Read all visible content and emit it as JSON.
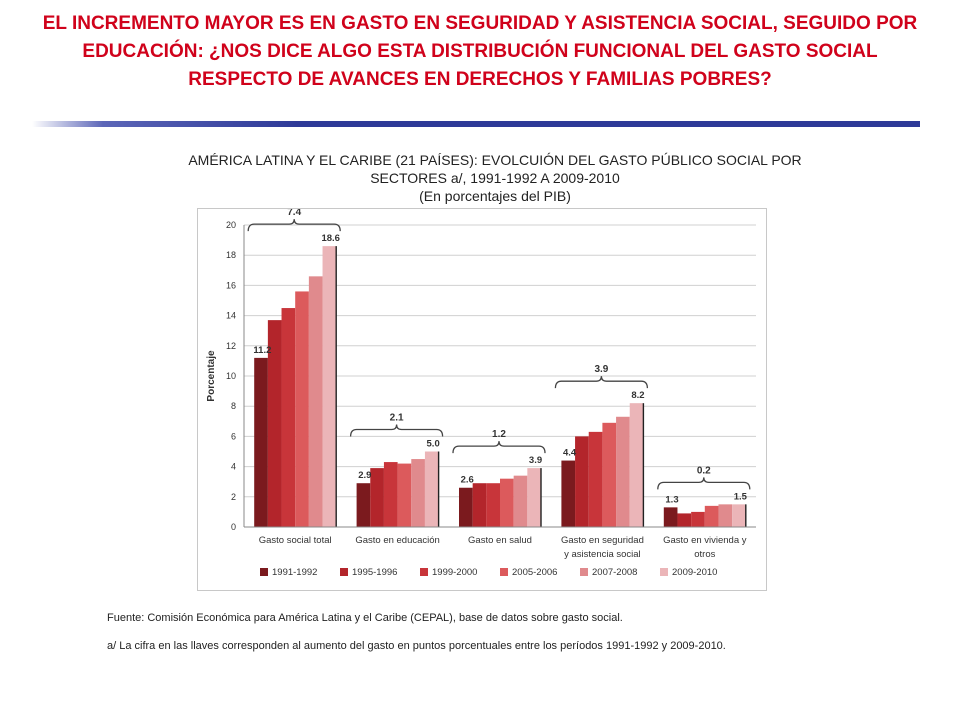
{
  "slide": {
    "title": "EL INCREMENTO MAYOR ES EN GASTO EN SEGURIDAD Y ASISTENCIA SOCIAL, SEGUIDO POR EDUCACIÓN: ¿NOS DICE ALGO ESTA DISTRIBUCIÓN FUNCIONAL DEL GASTO SOCIAL RESPECTO DE AVANCES EN DERECHOS Y FAMILIAS POBRES?"
  },
  "chart_heading": {
    "line1": "AMÉRICA LATINA Y EL CARIBE (21 PAÍSES): EVOLCUIÓN DEL GASTO PÚBLICO SOCIAL POR",
    "line2": "SECTORES a/, 1991-1992 A 2009-2010",
    "line3": "(En porcentajes del PIB)"
  },
  "chart_data": {
    "type": "bar",
    "ylabel": "Porcentaje",
    "xlabel": "",
    "ylim": [
      0,
      20
    ],
    "yticks": [
      0,
      2,
      4,
      6,
      8,
      10,
      12,
      14,
      16,
      18,
      20
    ],
    "grid": true,
    "legend_position": "bottom",
    "categories": [
      [
        "Gasto social total"
      ],
      [
        "Gasto en educación"
      ],
      [
        "Gasto en salud"
      ],
      [
        "Gasto en seguridad",
        "y asistencia social"
      ],
      [
        "Gasto en vivienda y",
        "otros"
      ]
    ],
    "series": [
      {
        "name": "1991-1992",
        "color": "#7b1a1e",
        "values": [
          11.2,
          2.9,
          2.6,
          4.4,
          1.3
        ]
      },
      {
        "name": "1995-1996",
        "color": "#b3252b",
        "values": [
          13.7,
          3.9,
          2.9,
          6.0,
          0.9
        ]
      },
      {
        "name": "1999-2000",
        "color": "#c8353a",
        "values": [
          14.5,
          4.3,
          2.9,
          6.3,
          1.0
        ]
      },
      {
        "name": "2005-2006",
        "color": "#dc5a5c",
        "values": [
          15.6,
          4.2,
          3.2,
          6.9,
          1.4
        ]
      },
      {
        "name": "2007-2008",
        "color": "#e08a8d",
        "values": [
          16.6,
          4.5,
          3.4,
          7.3,
          1.5
        ]
      },
      {
        "name": "2009-2010",
        "color": "#ebb5b8",
        "values": [
          18.6,
          5.0,
          3.9,
          8.2,
          1.5
        ]
      }
    ],
    "start_labels": [
      "11.2",
      "2.9",
      "2.6",
      "4.4",
      "1.3"
    ],
    "end_labels": [
      "18.6",
      "5.0",
      "3.9",
      "8.2",
      "1.5"
    ],
    "increase_labels": [
      "7.4",
      "2.1",
      "1.2",
      "3.9",
      "0.2"
    ]
  },
  "footnotes": {
    "source": "Fuente: Comisión Económica para América Latina y el Caribe (CEPAL), base de datos sobre gasto social.",
    "note": "a/ La cifra en las llaves corresponden al aumento del gasto en puntos porcentuales entre los períodos 1991-1992 y 2009-2010."
  }
}
